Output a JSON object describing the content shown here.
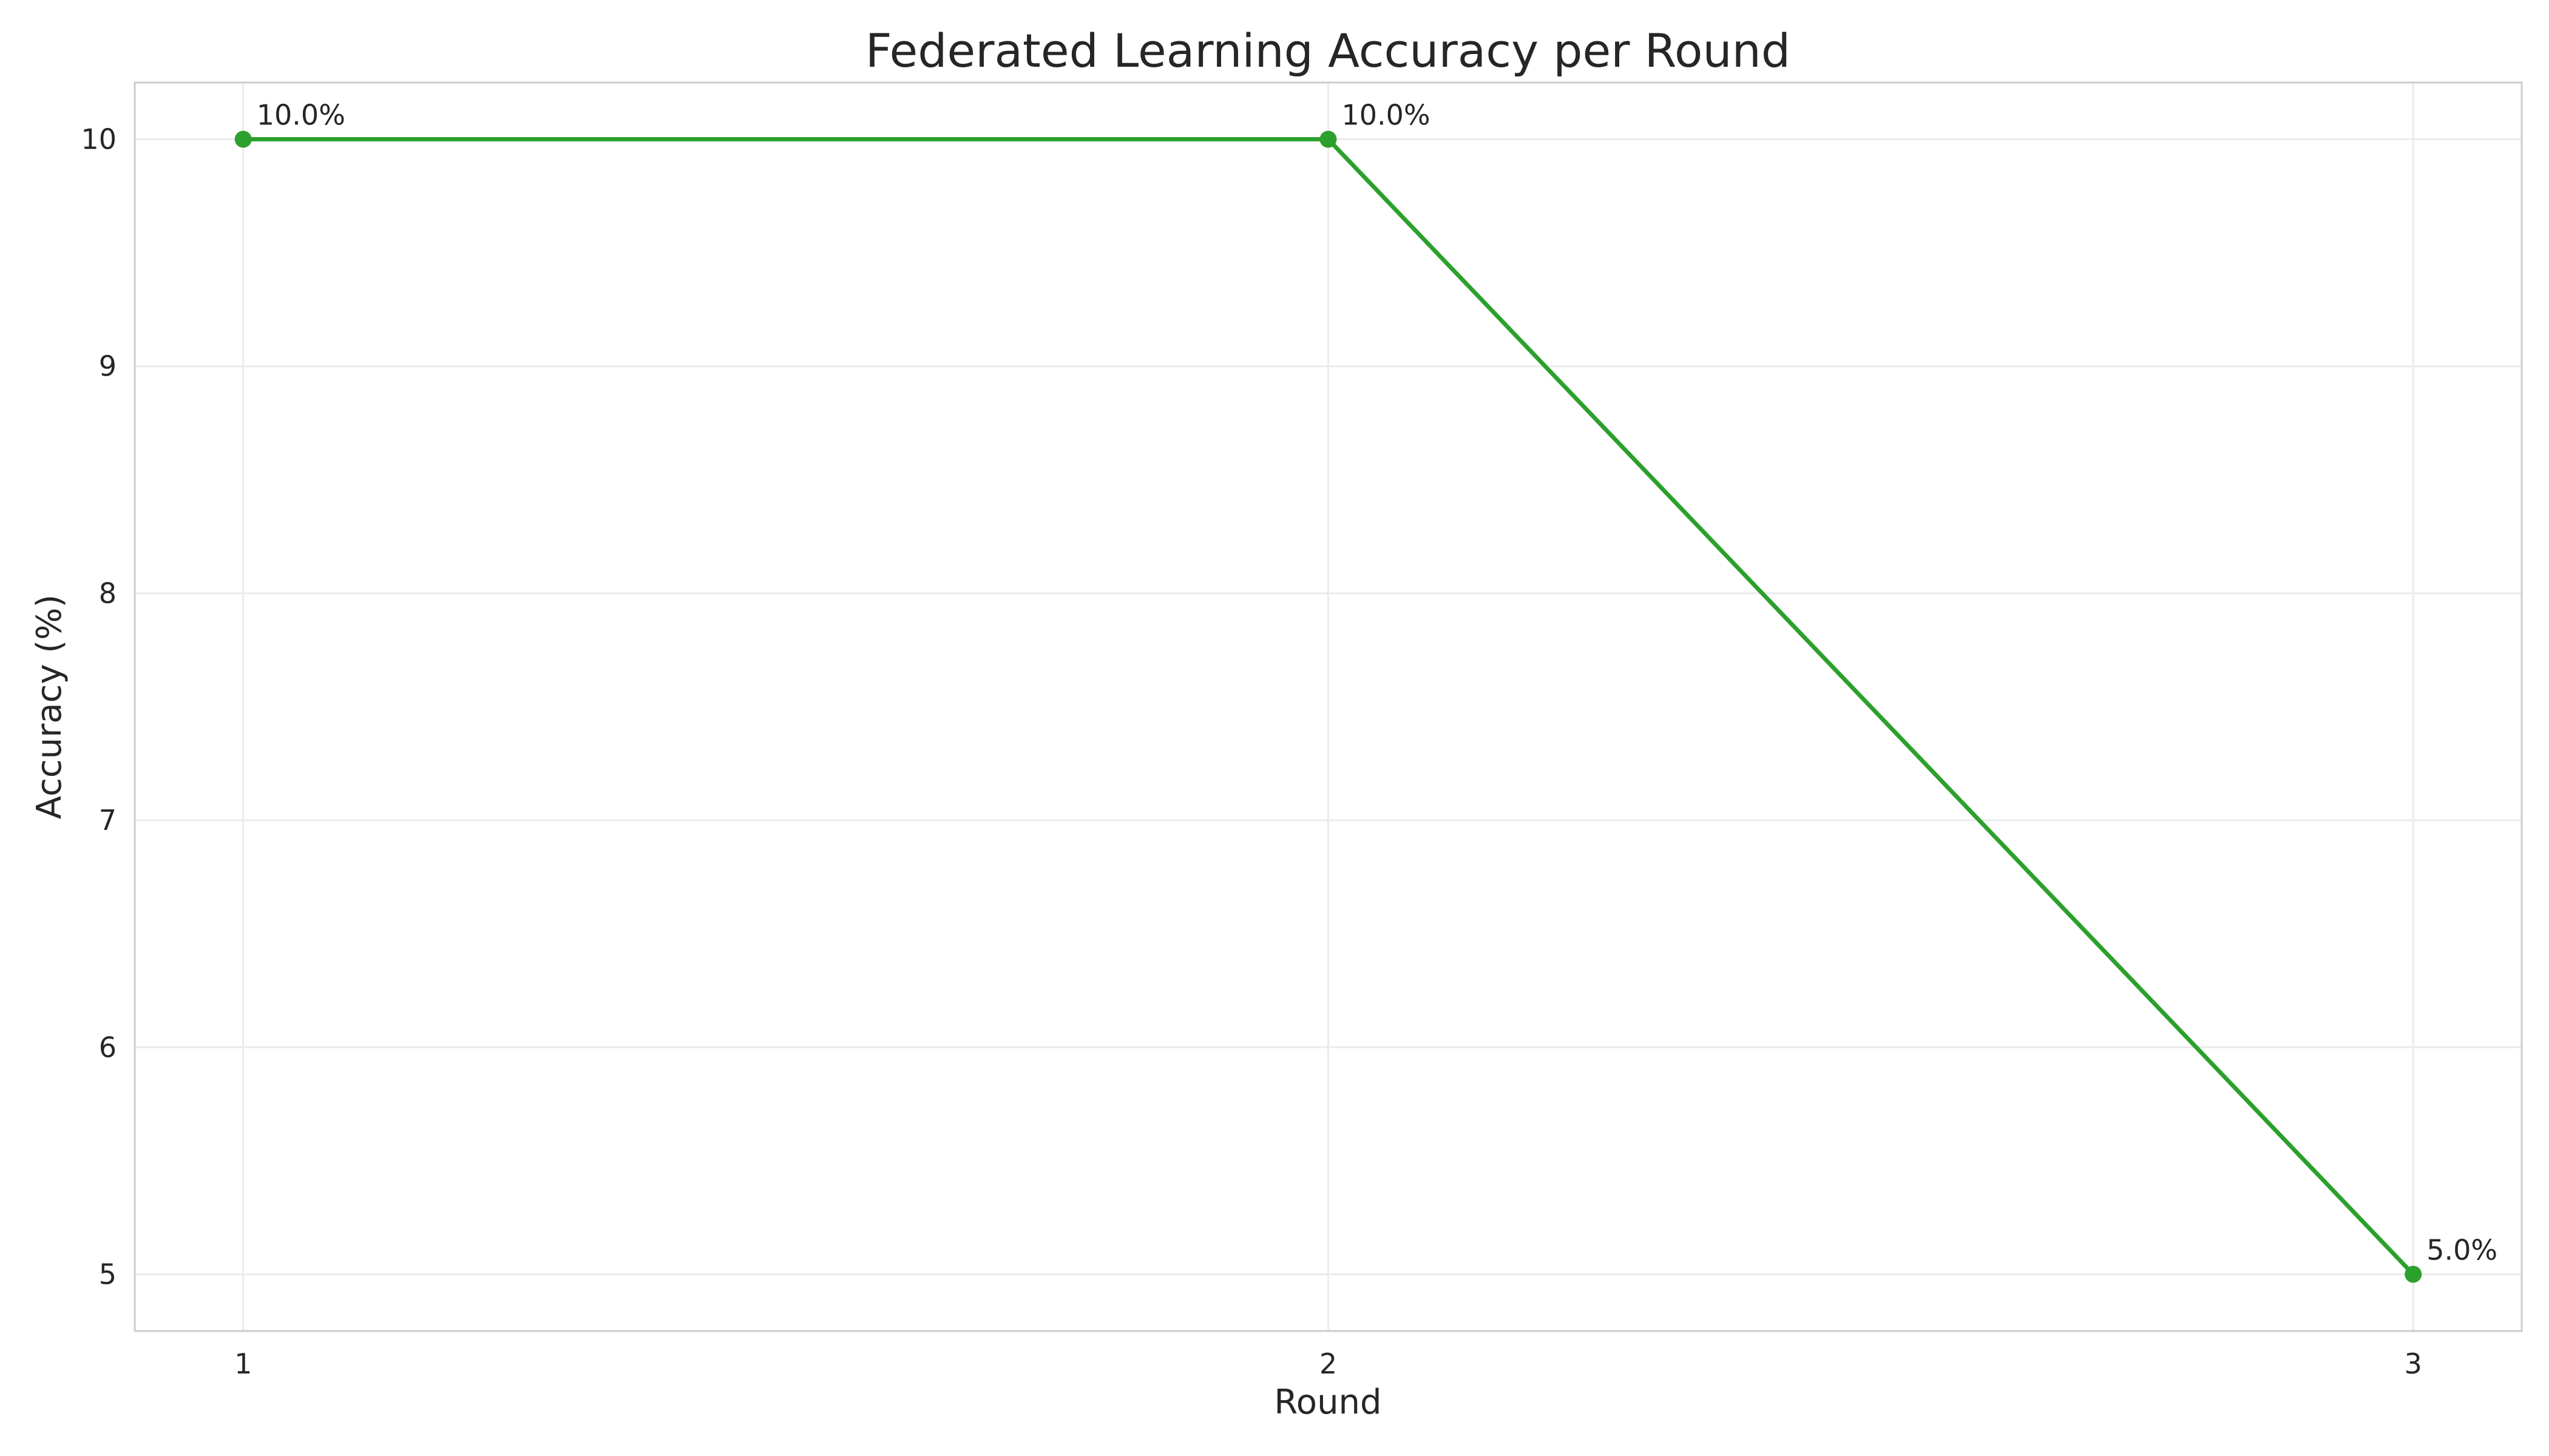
{
  "chart_data": {
    "type": "line",
    "title": "Federated Learning Accuracy per Round",
    "xlabel": "Round",
    "ylabel": "Accuracy (%)",
    "x": [
      1,
      2,
      3
    ],
    "xticks": [
      "1",
      "2",
      "3"
    ],
    "yticks": [
      "5",
      "6",
      "7",
      "8",
      "9",
      "10"
    ],
    "ylim": [
      4.75,
      10.25
    ],
    "xlim": [
      0.9,
      3.1
    ],
    "grid": true,
    "series": [
      {
        "values": [
          10.0,
          10.0,
          5.0
        ],
        "data_labels": [
          "10.0%",
          "10.0%",
          "5.0%"
        ],
        "color": "#2ca02c",
        "marker": "circle"
      }
    ]
  }
}
